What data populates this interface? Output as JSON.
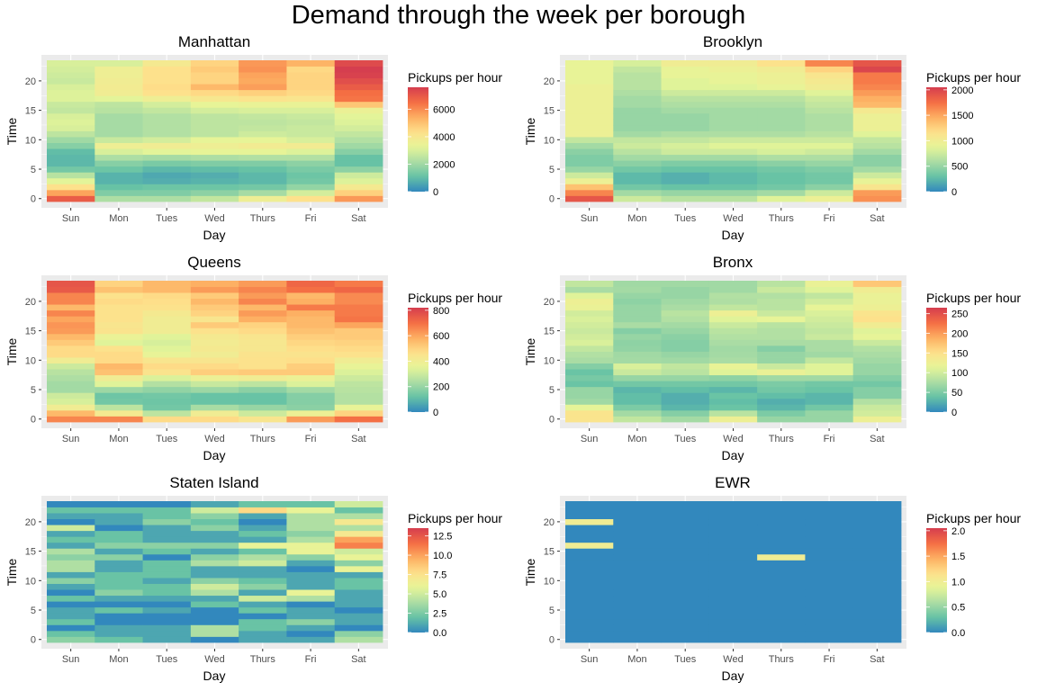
{
  "title": "Demand through the week per borough",
  "chart_data": [
    {
      "type": "heatmap",
      "title": "Manhattan",
      "xlabel": "Day",
      "ylabel": "Time",
      "x_categories": [
        "Sun",
        "Mon",
        "Tues",
        "Wed",
        "Thurs",
        "Fri",
        "Sat"
      ],
      "y_ticks": [
        0,
        5,
        10,
        15,
        20
      ],
      "y_range": [
        0,
        23
      ],
      "legend_title": "Pickups per hour",
      "legend_ticks": [
        0,
        2000,
        4000,
        6000
      ],
      "color_range": [
        0,
        7600
      ],
      "values_by_day_hour0_to_23": [
        [
          6900,
          5600,
          4300,
          3200,
          2400,
          1300,
          900,
          900,
          1000,
          1600,
          2000,
          2500,
          3000,
          3100,
          3000,
          2600,
          2700,
          3100,
          3100,
          3000,
          2700,
          2800,
          2900,
          3000
        ],
        [
          2200,
          1500,
          1100,
          800,
          800,
          1200,
          1600,
          2200,
          3000,
          3600,
          2700,
          2100,
          2100,
          2100,
          2100,
          2400,
          2500,
          3200,
          3700,
          3800,
          3700,
          3600,
          3600,
          3000
        ],
        [
          2200,
          1500,
          1200,
          700,
          600,
          900,
          1400,
          2100,
          3200,
          3700,
          2900,
          2300,
          2300,
          2300,
          2300,
          2600,
          2900,
          3600,
          4300,
          4400,
          4300,
          4300,
          4300,
          3900
        ],
        [
          2600,
          1700,
          1200,
          800,
          700,
          1000,
          1500,
          2200,
          3300,
          3600,
          3300,
          2500,
          2500,
          2500,
          2500,
          2900,
          3300,
          4000,
          4500,
          5200,
          4600,
          4600,
          4800,
          4600
        ],
        [
          3600,
          2100,
          1300,
          900,
          900,
          1100,
          1500,
          2300,
          3300,
          3800,
          3300,
          2800,
          2600,
          2500,
          2600,
          3000,
          3400,
          4200,
          4700,
          5700,
          5500,
          5600,
          5900,
          5800
        ],
        [
          4300,
          2900,
          1800,
          1300,
          1200,
          1400,
          1700,
          2300,
          3100,
          3800,
          3000,
          2700,
          2700,
          2600,
          2700,
          3000,
          3400,
          4100,
          4500,
          4600,
          4600,
          4600,
          4500,
          5300
        ],
        [
          5800,
          4700,
          3900,
          3100,
          2800,
          1700,
          1100,
          1100,
          1600,
          2000,
          2300,
          2600,
          2900,
          3100,
          3200,
          3500,
          4900,
          6400,
          6500,
          6900,
          7200,
          7500,
          7600,
          7300
        ]
      ]
    },
    {
      "type": "heatmap",
      "title": "Brooklyn",
      "xlabel": "Day",
      "ylabel": "Time",
      "x_categories": [
        "Sun",
        "Mon",
        "Tues",
        "Wed",
        "Thurs",
        "Fri",
        "Sat"
      ],
      "y_ticks": [
        0,
        5,
        10,
        15,
        20
      ],
      "y_range": [
        0,
        23
      ],
      "legend_title": "Pickups per hour",
      "legend_ticks": [
        0,
        500,
        1000,
        1500,
        2000
      ],
      "color_range": [
        0,
        2050
      ],
      "values_by_day_hour0_to_23": [
        [
          1900,
          1650,
          1350,
          950,
          750,
          500,
          400,
          400,
          450,
          550,
          700,
          950,
          950,
          950,
          950,
          950,
          950,
          950,
          950,
          950,
          900,
          900,
          900,
          900
        ],
        [
          750,
          550,
          350,
          250,
          250,
          350,
          450,
          550,
          650,
          750,
          700,
          550,
          500,
          500,
          500,
          500,
          550,
          550,
          600,
          650,
          650,
          650,
          700,
          800
        ],
        [
          650,
          500,
          300,
          200,
          200,
          300,
          400,
          550,
          750,
          800,
          700,
          600,
          500,
          500,
          500,
          550,
          600,
          650,
          750,
          850,
          850,
          900,
          900,
          1000
        ],
        [
          650,
          500,
          300,
          250,
          250,
          300,
          400,
          550,
          750,
          850,
          750,
          600,
          550,
          550,
          550,
          550,
          600,
          650,
          750,
          850,
          900,
          900,
          950,
          1000
        ],
        [
          850,
          550,
          350,
          300,
          300,
          350,
          450,
          600,
          800,
          850,
          750,
          600,
          550,
          550,
          550,
          550,
          600,
          650,
          750,
          900,
          950,
          950,
          1000,
          1150
        ],
        [
          950,
          750,
          450,
          350,
          350,
          400,
          500,
          600,
          750,
          850,
          750,
          650,
          600,
          600,
          600,
          650,
          700,
          750,
          850,
          1000,
          1050,
          1100,
          1250,
          1650
        ],
        [
          1600,
          1550,
          1100,
          900,
          750,
          550,
          450,
          450,
          550,
          650,
          700,
          850,
          950,
          950,
          950,
          1050,
          1400,
          1450,
          1550,
          1650,
          1700,
          1700,
          2000,
          1900
        ]
      ]
    },
    {
      "type": "heatmap",
      "title": "Queens",
      "xlabel": "Day",
      "ylabel": "Time",
      "x_categories": [
        "Sun",
        "Mon",
        "Tues",
        "Wed",
        "Thurs",
        "Fri",
        "Sat"
      ],
      "y_ticks": [
        0,
        5,
        10,
        15,
        20
      ],
      "y_range": [
        0,
        23
      ],
      "legend_title": "Pickups per hour",
      "legend_ticks": [
        0,
        200,
        400,
        600,
        800
      ],
      "color_range": [
        0,
        820
      ],
      "values_by_day_hour0_to_23": [
        [
          660,
          560,
          400,
          320,
          300,
          220,
          220,
          240,
          260,
          300,
          400,
          480,
          480,
          520,
          560,
          620,
          630,
          600,
          660,
          560,
          660,
          660,
          750,
          760
        ],
        [
          660,
          420,
          270,
          140,
          130,
          210,
          340,
          400,
          540,
          560,
          480,
          480,
          460,
          340,
          370,
          450,
          440,
          460,
          460,
          460,
          480,
          460,
          540,
          500
        ],
        [
          480,
          270,
          140,
          130,
          140,
          190,
          250,
          330,
          450,
          480,
          440,
          360,
          340,
          320,
          340,
          400,
          400,
          400,
          420,
          460,
          470,
          480,
          560,
          560
        ],
        [
          480,
          400,
          230,
          120,
          120,
          210,
          290,
          380,
          510,
          480,
          440,
          400,
          420,
          410,
          420,
          460,
          520,
          440,
          500,
          520,
          560,
          520,
          620,
          580
        ],
        [
          440,
          300,
          200,
          120,
          120,
          180,
          270,
          400,
          520,
          460,
          460,
          450,
          430,
          430,
          440,
          480,
          500,
          580,
          620,
          560,
          660,
          620,
          660,
          620
        ],
        [
          620,
          380,
          180,
          170,
          170,
          220,
          330,
          380,
          520,
          510,
          470,
          450,
          470,
          490,
          510,
          540,
          560,
          560,
          580,
          680,
          580,
          560,
          700,
          720
        ],
        [
          700,
          500,
          360,
          250,
          250,
          260,
          270,
          300,
          330,
          360,
          400,
          460,
          480,
          500,
          520,
          520,
          600,
          690,
          680,
          680,
          650,
          650,
          720,
          680
        ]
      ]
    },
    {
      "type": "heatmap",
      "title": "Bronx",
      "xlabel": "Day",
      "ylabel": "Time",
      "x_categories": [
        "Sun",
        "Mon",
        "Tues",
        "Wed",
        "Thurs",
        "Fri",
        "Sat"
      ],
      "y_ticks": [
        0,
        5,
        10,
        15,
        20
      ],
      "y_range": [
        0,
        23
      ],
      "legend_title": "Pickups per hour",
      "legend_ticks": [
        0,
        50,
        100,
        150,
        200,
        250
      ],
      "color_range": [
        0,
        265
      ],
      "values_by_day_hour0_to_23": [
        [
          145,
          145,
          115,
          70,
          65,
          65,
          40,
          48,
          40,
          55,
          75,
          80,
          90,
          105,
          100,
          95,
          100,
          105,
          100,
          120,
          125,
          110,
          75,
          90
        ],
        [
          90,
          72,
          50,
          35,
          35,
          30,
          45,
          65,
          95,
          105,
          72,
          70,
          62,
          60,
          65,
          55,
          75,
          65,
          65,
          65,
          60,
          65,
          72,
          70
        ],
        [
          72,
          55,
          30,
          25,
          25,
          35,
          45,
          65,
          85,
          90,
          70,
          65,
          55,
          55,
          58,
          65,
          72,
          80,
          85,
          75,
          70,
          65,
          65,
          70
        ],
        [
          125,
          85,
          40,
          35,
          40,
          30,
          45,
          60,
          110,
          118,
          75,
          72,
          70,
          75,
          80,
          85,
          95,
          110,
          125,
          90,
          78,
          80,
          70,
          70
        ],
        [
          65,
          50,
          30,
          25,
          35,
          45,
          50,
          70,
          120,
          95,
          65,
          65,
          55,
          75,
          80,
          80,
          85,
          115,
          95,
          85,
          85,
          80,
          95,
          85
        ],
        [
          65,
          65,
          45,
          30,
          30,
          40,
          45,
          70,
          110,
          110,
          90,
          70,
          75,
          75,
          95,
          90,
          95,
          100,
          105,
          115,
          100,
          90,
          110,
          120
        ],
        [
          125,
          100,
          95,
          80,
          55,
          55,
          45,
          55,
          65,
          65,
          70,
          75,
          80,
          95,
          115,
          110,
          130,
          150,
          145,
          125,
          120,
          120,
          130,
          170
        ]
      ]
    },
    {
      "type": "heatmap",
      "title": "Staten Island",
      "xlabel": "Day",
      "ylabel": "Time",
      "x_categories": [
        "Sun",
        "Mon",
        "Tues",
        "Wed",
        "Thurs",
        "Fri",
        "Sat"
      ],
      "y_ticks": [
        0,
        5,
        10,
        15,
        20
      ],
      "y_range": [
        0,
        23
      ],
      "legend_title": "Pickups per hour",
      "legend_ticks": [
        0.0,
        2.5,
        5.0,
        7.5,
        10.0,
        12.5
      ],
      "color_range": [
        0,
        13.5
      ],
      "values_by_day_hour0_to_23": [
        [
          3,
          2,
          0,
          2,
          1,
          1,
          0,
          2,
          0,
          1,
          3,
          1,
          4,
          4,
          3,
          4,
          1,
          2,
          1,
          5,
          0,
          1,
          2,
          0
        ],
        [
          2,
          1,
          1,
          0,
          0,
          2,
          0,
          1,
          3,
          2,
          2,
          2,
          1,
          1,
          3,
          1,
          3,
          2,
          2,
          0,
          1,
          1,
          2,
          0
        ],
        [
          1,
          1,
          1,
          0,
          0,
          1,
          0,
          1,
          2,
          2,
          1,
          2,
          2,
          2,
          0,
          2,
          3,
          1,
          1,
          1,
          3,
          2,
          2,
          0
        ],
        [
          0,
          4,
          4,
          0,
          0,
          0,
          2,
          1,
          4,
          5,
          3,
          1,
          1,
          4,
          3,
          1,
          3,
          1,
          1,
          3,
          2,
          3,
          5,
          1
        ],
        [
          1,
          1,
          2,
          2,
          0,
          2,
          1,
          5,
          1,
          3,
          2,
          1,
          1,
          5,
          4,
          2,
          6,
          1,
          2,
          1,
          0,
          1,
          8,
          2
        ],
        [
          1,
          0,
          1,
          3,
          1,
          1,
          0,
          4,
          6,
          1,
          1,
          1,
          0,
          1,
          3,
          6,
          6,
          4,
          3,
          4,
          4,
          4,
          6,
          2
        ],
        [
          4,
          3,
          0,
          1,
          1,
          0,
          1,
          1,
          1,
          2,
          2,
          1,
          6,
          3,
          6,
          5,
          11,
          10,
          7,
          4,
          7,
          4,
          2,
          5
        ]
      ]
    },
    {
      "type": "heatmap",
      "title": "EWR",
      "xlabel": "Day",
      "ylabel": "Time",
      "x_categories": [
        "Sun",
        "Mon",
        "Tues",
        "Wed",
        "Thurs",
        "Fri",
        "Sat"
      ],
      "y_ticks": [
        0,
        5,
        10,
        15,
        20
      ],
      "y_range": [
        0,
        23
      ],
      "legend_title": "Pickups per hour",
      "legend_ticks": [
        0.0,
        0.5,
        1.0,
        1.5,
        2.0
      ],
      "color_range": [
        0,
        2.05
      ],
      "values_by_day_hour0_to_23": [
        [
          0,
          0,
          0,
          0,
          0,
          0,
          0,
          0,
          0,
          0,
          0,
          0,
          0,
          0,
          0,
          0,
          1,
          0,
          0,
          0,
          1,
          0,
          0,
          0
        ],
        [
          0,
          0,
          0,
          0,
          0,
          0,
          0,
          0,
          0,
          0,
          0,
          0,
          0,
          0,
          0,
          0,
          0,
          0,
          0,
          0,
          0,
          0,
          0,
          0
        ],
        [
          0,
          0,
          0,
          0,
          0,
          0,
          0,
          0,
          0,
          0,
          0,
          0,
          0,
          0,
          0,
          0,
          0,
          0,
          0,
          0,
          0,
          0,
          0,
          0
        ],
        [
          0,
          0,
          0,
          0,
          0,
          0,
          0,
          0,
          0,
          0,
          0,
          0,
          0,
          0,
          0,
          0,
          0,
          0,
          0,
          0,
          0,
          0,
          0,
          0
        ],
        [
          0,
          0,
          0,
          0,
          0,
          0,
          0,
          0,
          0,
          0,
          0,
          0,
          0,
          0,
          1,
          0,
          0,
          0,
          0,
          0,
          0,
          0,
          0,
          0
        ],
        [
          0,
          0,
          0,
          0,
          0,
          0,
          0,
          0,
          0,
          0,
          0,
          0,
          0,
          0,
          0,
          0,
          0,
          0,
          0,
          0,
          0,
          0,
          0,
          0
        ],
        [
          0,
          0,
          0,
          0,
          0,
          0,
          0,
          0,
          0,
          0,
          0,
          0,
          0,
          0,
          0,
          0,
          0,
          0,
          0,
          0,
          0,
          0,
          0,
          0
        ]
      ]
    }
  ],
  "palette": [
    "#3288bd",
    "#66c2a5",
    "#abdda4",
    "#e6f598",
    "#fee08b",
    "#fdae61",
    "#f46d43",
    "#d53e4f"
  ]
}
